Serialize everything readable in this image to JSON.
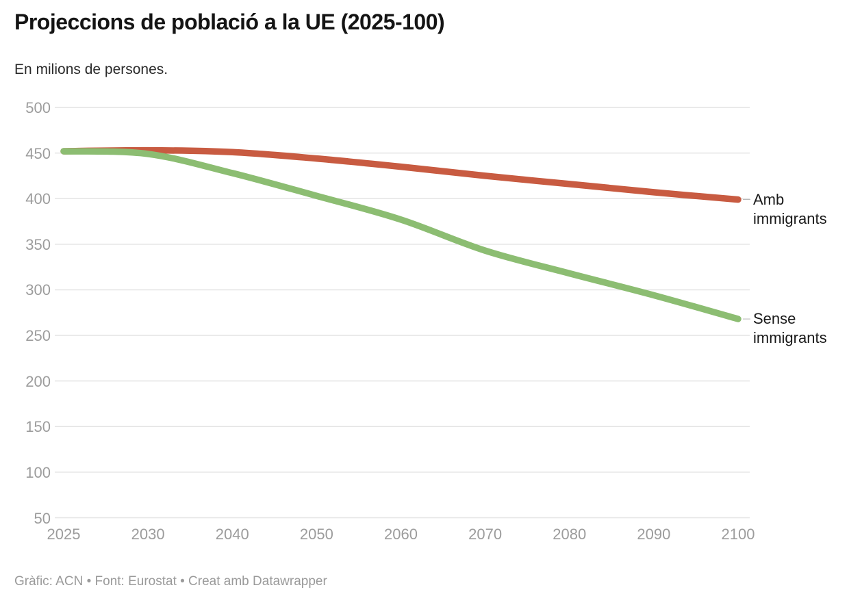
{
  "header": {
    "title": "Projeccions de població a la UE (2025-100)",
    "subtitle": "En milions de persones."
  },
  "footer": {
    "credit": "Gràfic: ACN • Font: Eurostat • Creat amb Datawrapper"
  },
  "colors": {
    "amb_immigrants": "#c85b41",
    "sense_immigrants": "#8cbd72",
    "gridline": "#e4e4e4",
    "tick_text": "#9c9c9c",
    "connector": "#b5b5b5"
  },
  "chart_data": {
    "type": "line",
    "title": "Projeccions de població a la UE (2025-100)",
    "subtitle": "En milions de persones.",
    "x": [
      2025,
      2030,
      2040,
      2050,
      2060,
      2070,
      2080,
      2090,
      2100
    ],
    "x_tick_labels": [
      "2025",
      "2030",
      "2040",
      "2050",
      "2060",
      "2070",
      "2080",
      "2090",
      "2100"
    ],
    "y_ticks": [
      500,
      450,
      400,
      350,
      300,
      250,
      200,
      150,
      100,
      50
    ],
    "ylim": [
      50,
      500
    ],
    "grid": "horizontal",
    "x_spacing": "equal-per-labeled-tick",
    "legend_position": "labels-at-line-ends-right",
    "series": [
      {
        "name": "Amb immigrants",
        "color": "#c85b41",
        "values": [
          452,
          453,
          451,
          444,
          435,
          425,
          416,
          407,
          399
        ]
      },
      {
        "name": "Sense immigrants",
        "color": "#8cbd72",
        "values": [
          452,
          449,
          428,
          403,
          377,
          343,
          318,
          294,
          268
        ]
      }
    ]
  }
}
